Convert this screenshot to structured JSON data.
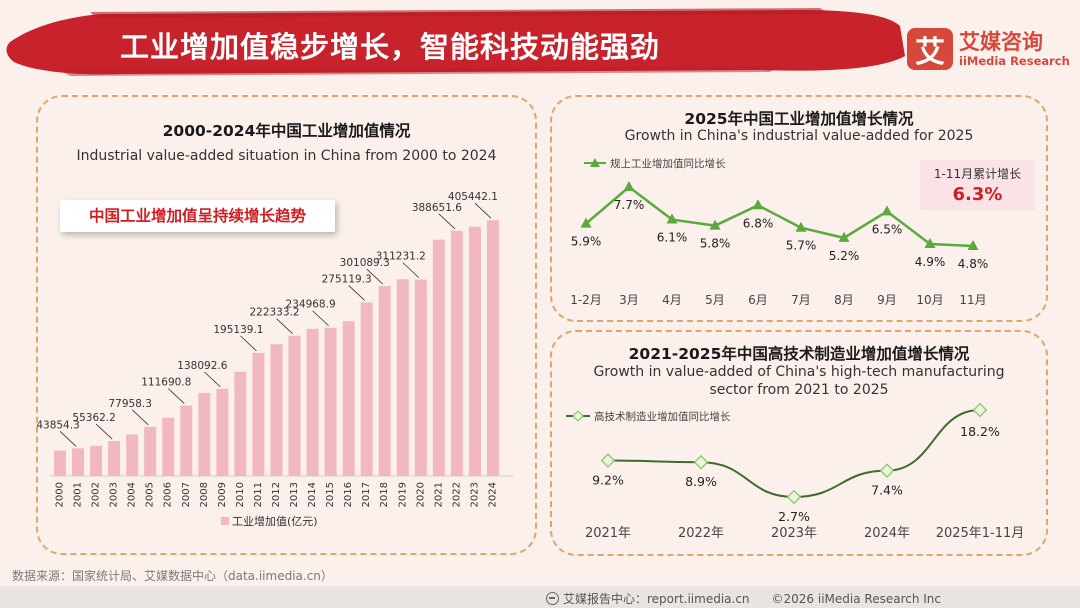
{
  "header": {
    "title": "工业增加值稳步增长，智能科技动能强劲",
    "logo_mark": "艾",
    "logo_cn": "艾媒咨询",
    "logo_en": "iiMedia Research"
  },
  "colors": {
    "banner_red": "#c8232c",
    "bar_pink": "#f2b8c0",
    "line_green": "#5aaa3c",
    "line_dark_green": "#3f6b2c",
    "accent_red": "#d01f24",
    "panel_border": "#e3a568"
  },
  "left_panel": {
    "title": "2000-2024年中国工业增加值情况",
    "subtitle": "Industrial value-added situation in China from 2000 to 2024",
    "callout": "中国工业增加值呈持续增长趋势"
  },
  "top_right_panel": {
    "title": "2025年中国工业增加值增长情况",
    "subtitle": "Growth in China's industrial value-added for 2025",
    "cumulative_label": "1-11月累计增长",
    "cumulative_value": "6.3%"
  },
  "bottom_right_panel": {
    "title": "2021-2025年中国高技术制造业增加值增长情况",
    "subtitle_line1": "Growth in value-added of China's high-tech manufacturing",
    "subtitle_line2": "sector from 2021 to 2025"
  },
  "chart_data": [
    {
      "type": "bar",
      "title": "2000-2024年中国工业增加值情况",
      "legend": "工业增加值(亿元)",
      "legend_position": "bottom",
      "categories": [
        "2000",
        "2001",
        "2002",
        "2003",
        "2004",
        "2005",
        "2006",
        "2007",
        "2008",
        "2009",
        "2010",
        "2011",
        "2012",
        "2013",
        "2014",
        "2015",
        "2016",
        "2017",
        "2018",
        "2019",
        "2020",
        "2021",
        "2022",
        "2023",
        "2024"
      ],
      "values": [
        40259.7,
        43854.3,
        47774.9,
        55362.2,
        65774.9,
        77958.3,
        92235.8,
        111690.8,
        131724.0,
        138092.6,
        165123.1,
        195139.1,
        208901.4,
        222333.2,
        233197.4,
        234968.9,
        245406.4,
        275119.3,
        301089.3,
        311858.7,
        311231.2,
        374545.6,
        388651.6,
        395000.0,
        405442.1
      ],
      "labels": {
        "2001": "43854.3",
        "2003": "55362.2",
        "2005": "77958.3",
        "2007": "111690.8",
        "2009": "138092.6",
        "2011": "195139.1",
        "2013": "222333.2",
        "2015": "234968.9",
        "2017": "275119.3",
        "2018": "301089.3",
        "2020": "311231.2",
        "2022": "388651.6",
        "2024": "405442.1"
      },
      "ylim": [
        0,
        420000
      ]
    },
    {
      "type": "line",
      "title": "2025年中国工业增加值增长情况",
      "legend": "规上工业增加值同比增长",
      "legend_position": "top-left",
      "categories": [
        "1-2月",
        "3月",
        "4月",
        "5月",
        "6月",
        "7月",
        "8月",
        "9月",
        "10月",
        "11月"
      ],
      "values": [
        5.9,
        7.7,
        6.1,
        5.8,
        6.8,
        5.7,
        5.2,
        6.5,
        4.9,
        4.8
      ],
      "labels": [
        "5.9%",
        "7.7%",
        "6.1%",
        "5.8%",
        "6.8%",
        "5.7%",
        "5.2%",
        "6.5%",
        "4.9%",
        "4.8%"
      ],
      "ylim": [
        4,
        8
      ]
    },
    {
      "type": "line",
      "title": "2021-2025年中国高技术制造业增加值增长情况",
      "legend": "高技术制造业增加值同比增长",
      "legend_position": "top-left",
      "categories": [
        "2021年",
        "2022年",
        "2023年",
        "2024年",
        "2025年1-11月"
      ],
      "values": [
        9.2,
        8.9,
        2.7,
        7.4,
        18.2
      ],
      "labels": [
        "9.2%",
        "8.9%",
        "2.7%",
        "7.4%",
        "18.2%"
      ],
      "ylim": [
        2,
        19
      ]
    }
  ],
  "footer": {
    "source": "数据来源：国家统计局、艾媒数据中心（data.iimedia.cn）",
    "report_center": "艾媒报告中心：report.iimedia.cn",
    "copyright": "©2026  iiMedia Research  Inc"
  }
}
